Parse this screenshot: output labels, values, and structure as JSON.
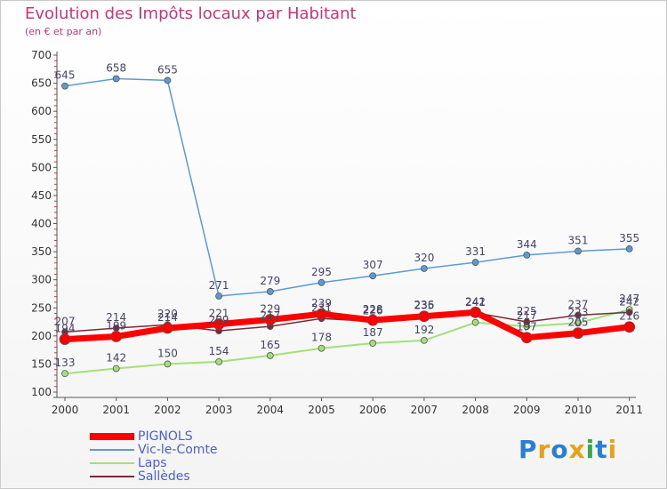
{
  "chart_data": {
    "type": "line",
    "title": "Evolution des Impôts locaux par Habitant",
    "subtitle": "(en € et par an)",
    "xlabel": "",
    "ylabel": "",
    "ylim": [
      100,
      700
    ],
    "y_ticks": [
      100,
      150,
      200,
      250,
      300,
      350,
      400,
      450,
      500,
      550,
      600,
      650,
      700
    ],
    "categories": [
      "2000",
      "2001",
      "2002",
      "2003",
      "2004",
      "2005",
      "2006",
      "2007",
      "2008",
      "2009",
      "2010",
      "2011"
    ],
    "grid": false,
    "legend_position": "bottom-left",
    "series": [
      {
        "name": "PIGNOLS",
        "color": "#ff0000",
        "values": [
          194,
          199,
          214,
          221,
          229,
          239,
          228,
          235,
          242,
          197,
          205,
          216
        ],
        "labels_shown": [
          true,
          true,
          true,
          true,
          true,
          true,
          true,
          true,
          true,
          true,
          true,
          true
        ]
      },
      {
        "name": "Vic-le-Comte",
        "color": "#5b9bd5",
        "values": [
          645,
          658,
          655,
          271,
          279,
          295,
          307,
          320,
          331,
          344,
          351,
          355
        ],
        "labels_shown": [
          true,
          true,
          true,
          true,
          true,
          true,
          true,
          true,
          true,
          true,
          true,
          true
        ]
      },
      {
        "name": "Laps",
        "color": "#a3e07a",
        "values": [
          133,
          142,
          150,
          154,
          165,
          178,
          187,
          192,
          224,
          217,
          223,
          247
        ],
        "labels_shown": [
          true,
          true,
          true,
          true,
          true,
          true,
          true,
          true,
          false,
          true,
          true,
          true
        ]
      },
      {
        "name": "Sallèdes",
        "color": "#7b2a3a",
        "values": [
          207,
          214,
          220,
          209,
          217,
          231,
          226,
          236,
          241,
          225,
          237,
          242
        ],
        "labels_shown": [
          true,
          true,
          true,
          true,
          true,
          true,
          true,
          true,
          true,
          true,
          true,
          true
        ]
      }
    ]
  },
  "logo": {
    "text": "Proxiti",
    "letter_colors": [
      "#2a7fd4",
      "#e8a21a",
      "#2a7fd4",
      "#e8a21a",
      "#3aa84a",
      "#2a7fd4",
      "#e8a21a"
    ]
  }
}
